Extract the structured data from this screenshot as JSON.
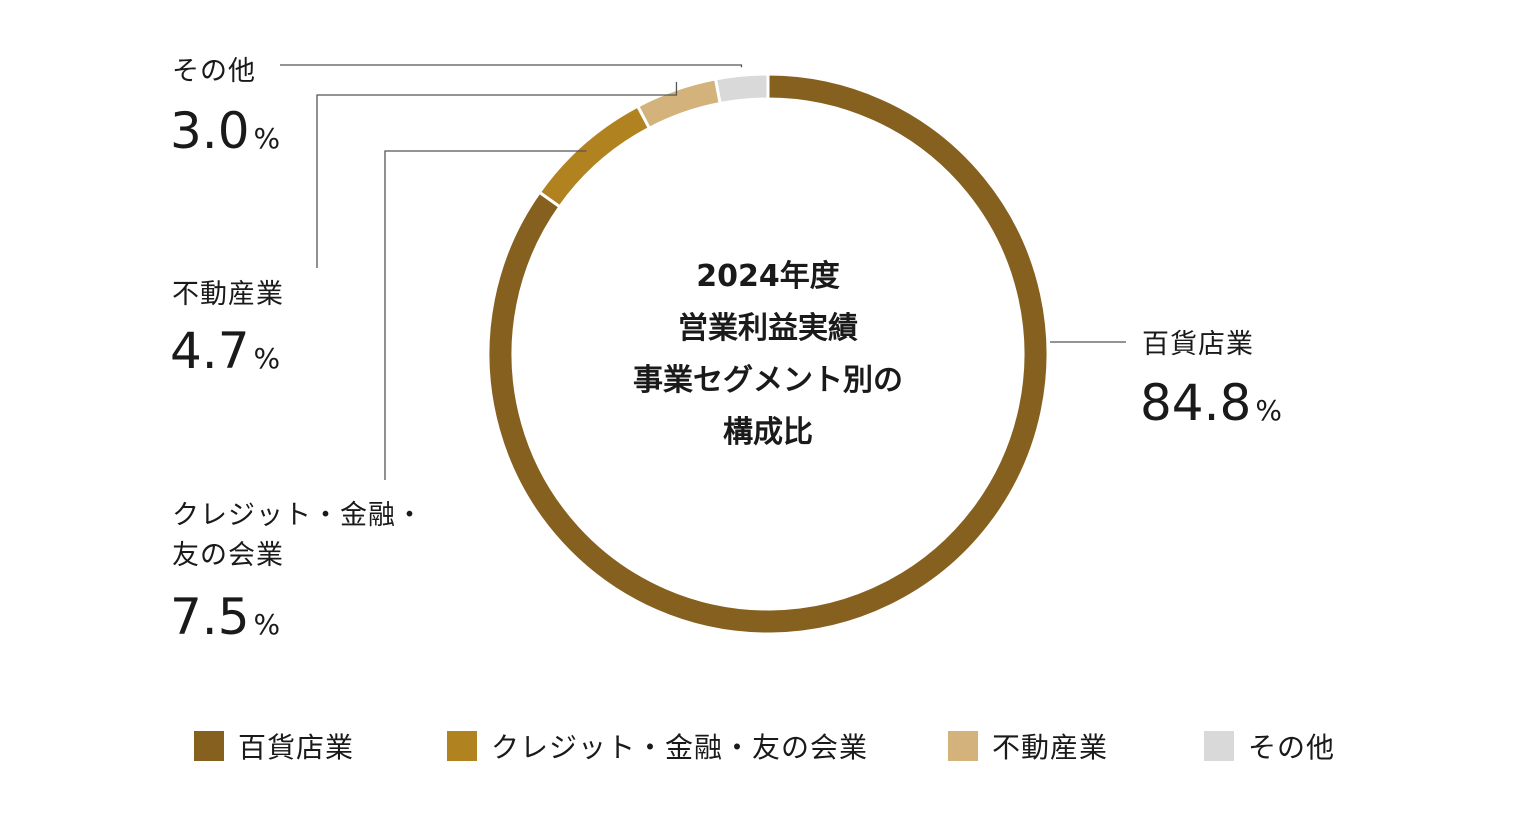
{
  "chart_data": {
    "type": "pie",
    "donut": true,
    "title_lines": [
      "2024年度",
      "営業利益実績",
      "事業セグメント別の",
      "構成比"
    ],
    "unit": "%",
    "slices": [
      {
        "name": "百貨店業",
        "label_lines": [
          "百貨店業"
        ],
        "value": 84.8,
        "value_text": "84.8",
        "color": "#86601f"
      },
      {
        "name": "クレジット・金融・友の会業",
        "label_lines": [
          "クレジット・金融・",
          "友の会業"
        ],
        "value": 7.5,
        "value_text": "7.5",
        "color": "#b08320"
      },
      {
        "name": "不動産業",
        "label_lines": [
          "不動産業"
        ],
        "value": 4.7,
        "value_text": "4.7",
        "color": "#d3b27c"
      },
      {
        "name": "その他",
        "label_lines": [
          "その他"
        ],
        "value": 3.0,
        "value_text": "3.0",
        "color": "#d9d9d9"
      }
    ],
    "legend_position": "bottom"
  }
}
